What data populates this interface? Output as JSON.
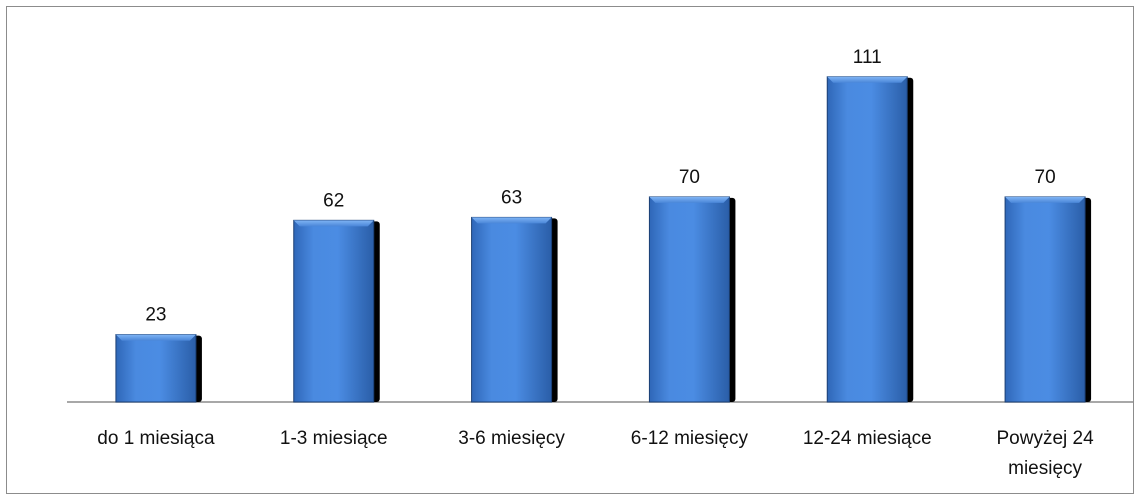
{
  "chart_data": {
    "type": "bar",
    "categories": [
      [
        "do 1 miesiąca"
      ],
      [
        "1-3 miesiące"
      ],
      [
        "3-6 miesięcy"
      ],
      [
        "6-12 miesięcy"
      ],
      [
        "12-24 miesiące"
      ],
      [
        "Powyżej 24",
        "miesięcy"
      ]
    ],
    "values": [
      23,
      62,
      63,
      70,
      111,
      70
    ],
    "data_labels": [
      "23",
      "62",
      "63",
      "70",
      "111",
      "70"
    ],
    "title": "",
    "xlabel": "",
    "ylabel": "",
    "ylim": [
      0,
      120
    ],
    "grid": false,
    "legend": "none",
    "bar_color": "#3a7bd5",
    "bar_highlight": "#63a0ee",
    "bar_shadow": "#000000"
  }
}
